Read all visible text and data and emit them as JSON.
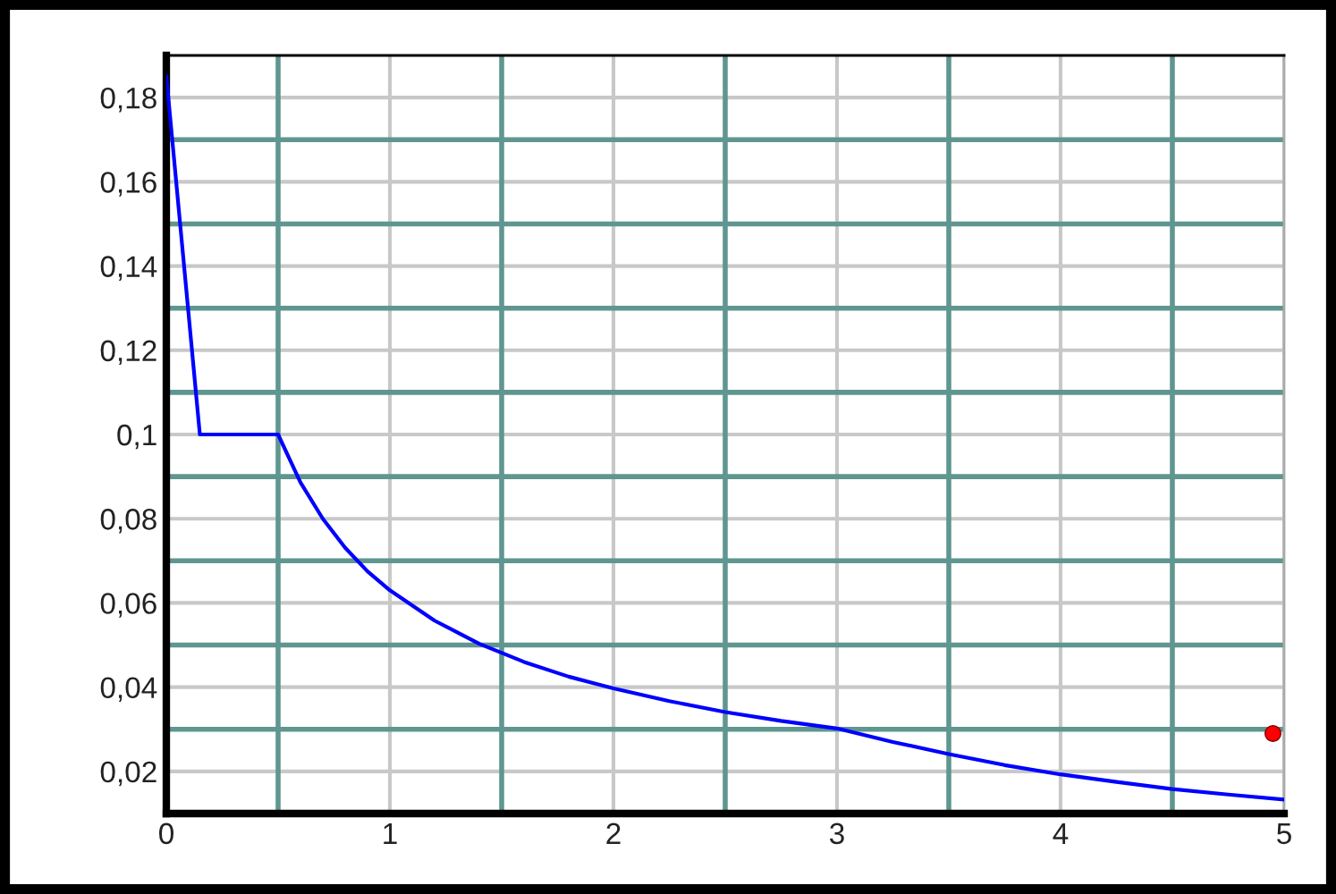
{
  "chart_data": {
    "type": "line",
    "xlim": [
      0,
      5
    ],
    "ylim": [
      0.01,
      0.19
    ],
    "xticks": [
      0,
      {
        "value": 0.5,
        "label": null
      },
      1,
      {
        "value": 1.5,
        "label": null
      },
      2,
      {
        "value": 2.5,
        "label": null
      },
      3,
      {
        "value": 3.5,
        "label": null
      },
      4,
      {
        "value": 4.5,
        "label": null
      },
      5
    ],
    "yticks": [
      {
        "value": 0.02,
        "label": "0,02"
      },
      {
        "value": 0.03,
        "label": null
      },
      {
        "value": 0.04,
        "label": "0,04"
      },
      {
        "value": 0.05,
        "label": null
      },
      {
        "value": 0.06,
        "label": "0,06"
      },
      {
        "value": 0.07,
        "label": null
      },
      {
        "value": 0.08,
        "label": "0,08"
      },
      {
        "value": 0.09,
        "label": null
      },
      {
        "value": 0.1,
        "label": "0,1"
      },
      {
        "value": 0.11,
        "label": null
      },
      {
        "value": 0.12,
        "label": "0,12"
      },
      {
        "value": 0.13,
        "label": null
      },
      {
        "value": 0.14,
        "label": "0,14"
      },
      {
        "value": 0.15,
        "label": null
      },
      {
        "value": 0.16,
        "label": "0,16"
      },
      {
        "value": 0.17,
        "label": null
      },
      {
        "value": 0.18,
        "label": "0,18"
      }
    ],
    "grid": true,
    "legend": false,
    "series": [
      {
        "color": "#0000ff",
        "x": [
          0,
          0.15,
          0.5,
          0.6,
          0.7,
          0.8,
          0.9,
          1.0,
          1.2,
          1.4,
          1.6,
          1.8,
          2.0,
          2.25,
          2.5,
          2.75,
          3.0,
          3.25,
          3.5,
          3.75,
          4.0,
          4.25,
          4.5,
          4.75,
          5.0
        ],
        "values": [
          0.185,
          0.1,
          0.1,
          0.0886,
          0.08,
          0.0731,
          0.0675,
          0.063,
          0.0558,
          0.0503,
          0.046,
          0.0425,
          0.0397,
          0.0367,
          0.0341,
          0.032,
          0.0302,
          0.027,
          0.0241,
          0.0215,
          0.0193,
          0.0175,
          0.0158,
          0.0145,
          0.0133
        ]
      },
      {
        "type": "scatter",
        "color": "#ff0000",
        "marker": "circle",
        "x": [
          4.95
        ],
        "values": [
          0.029
        ]
      }
    ]
  }
}
